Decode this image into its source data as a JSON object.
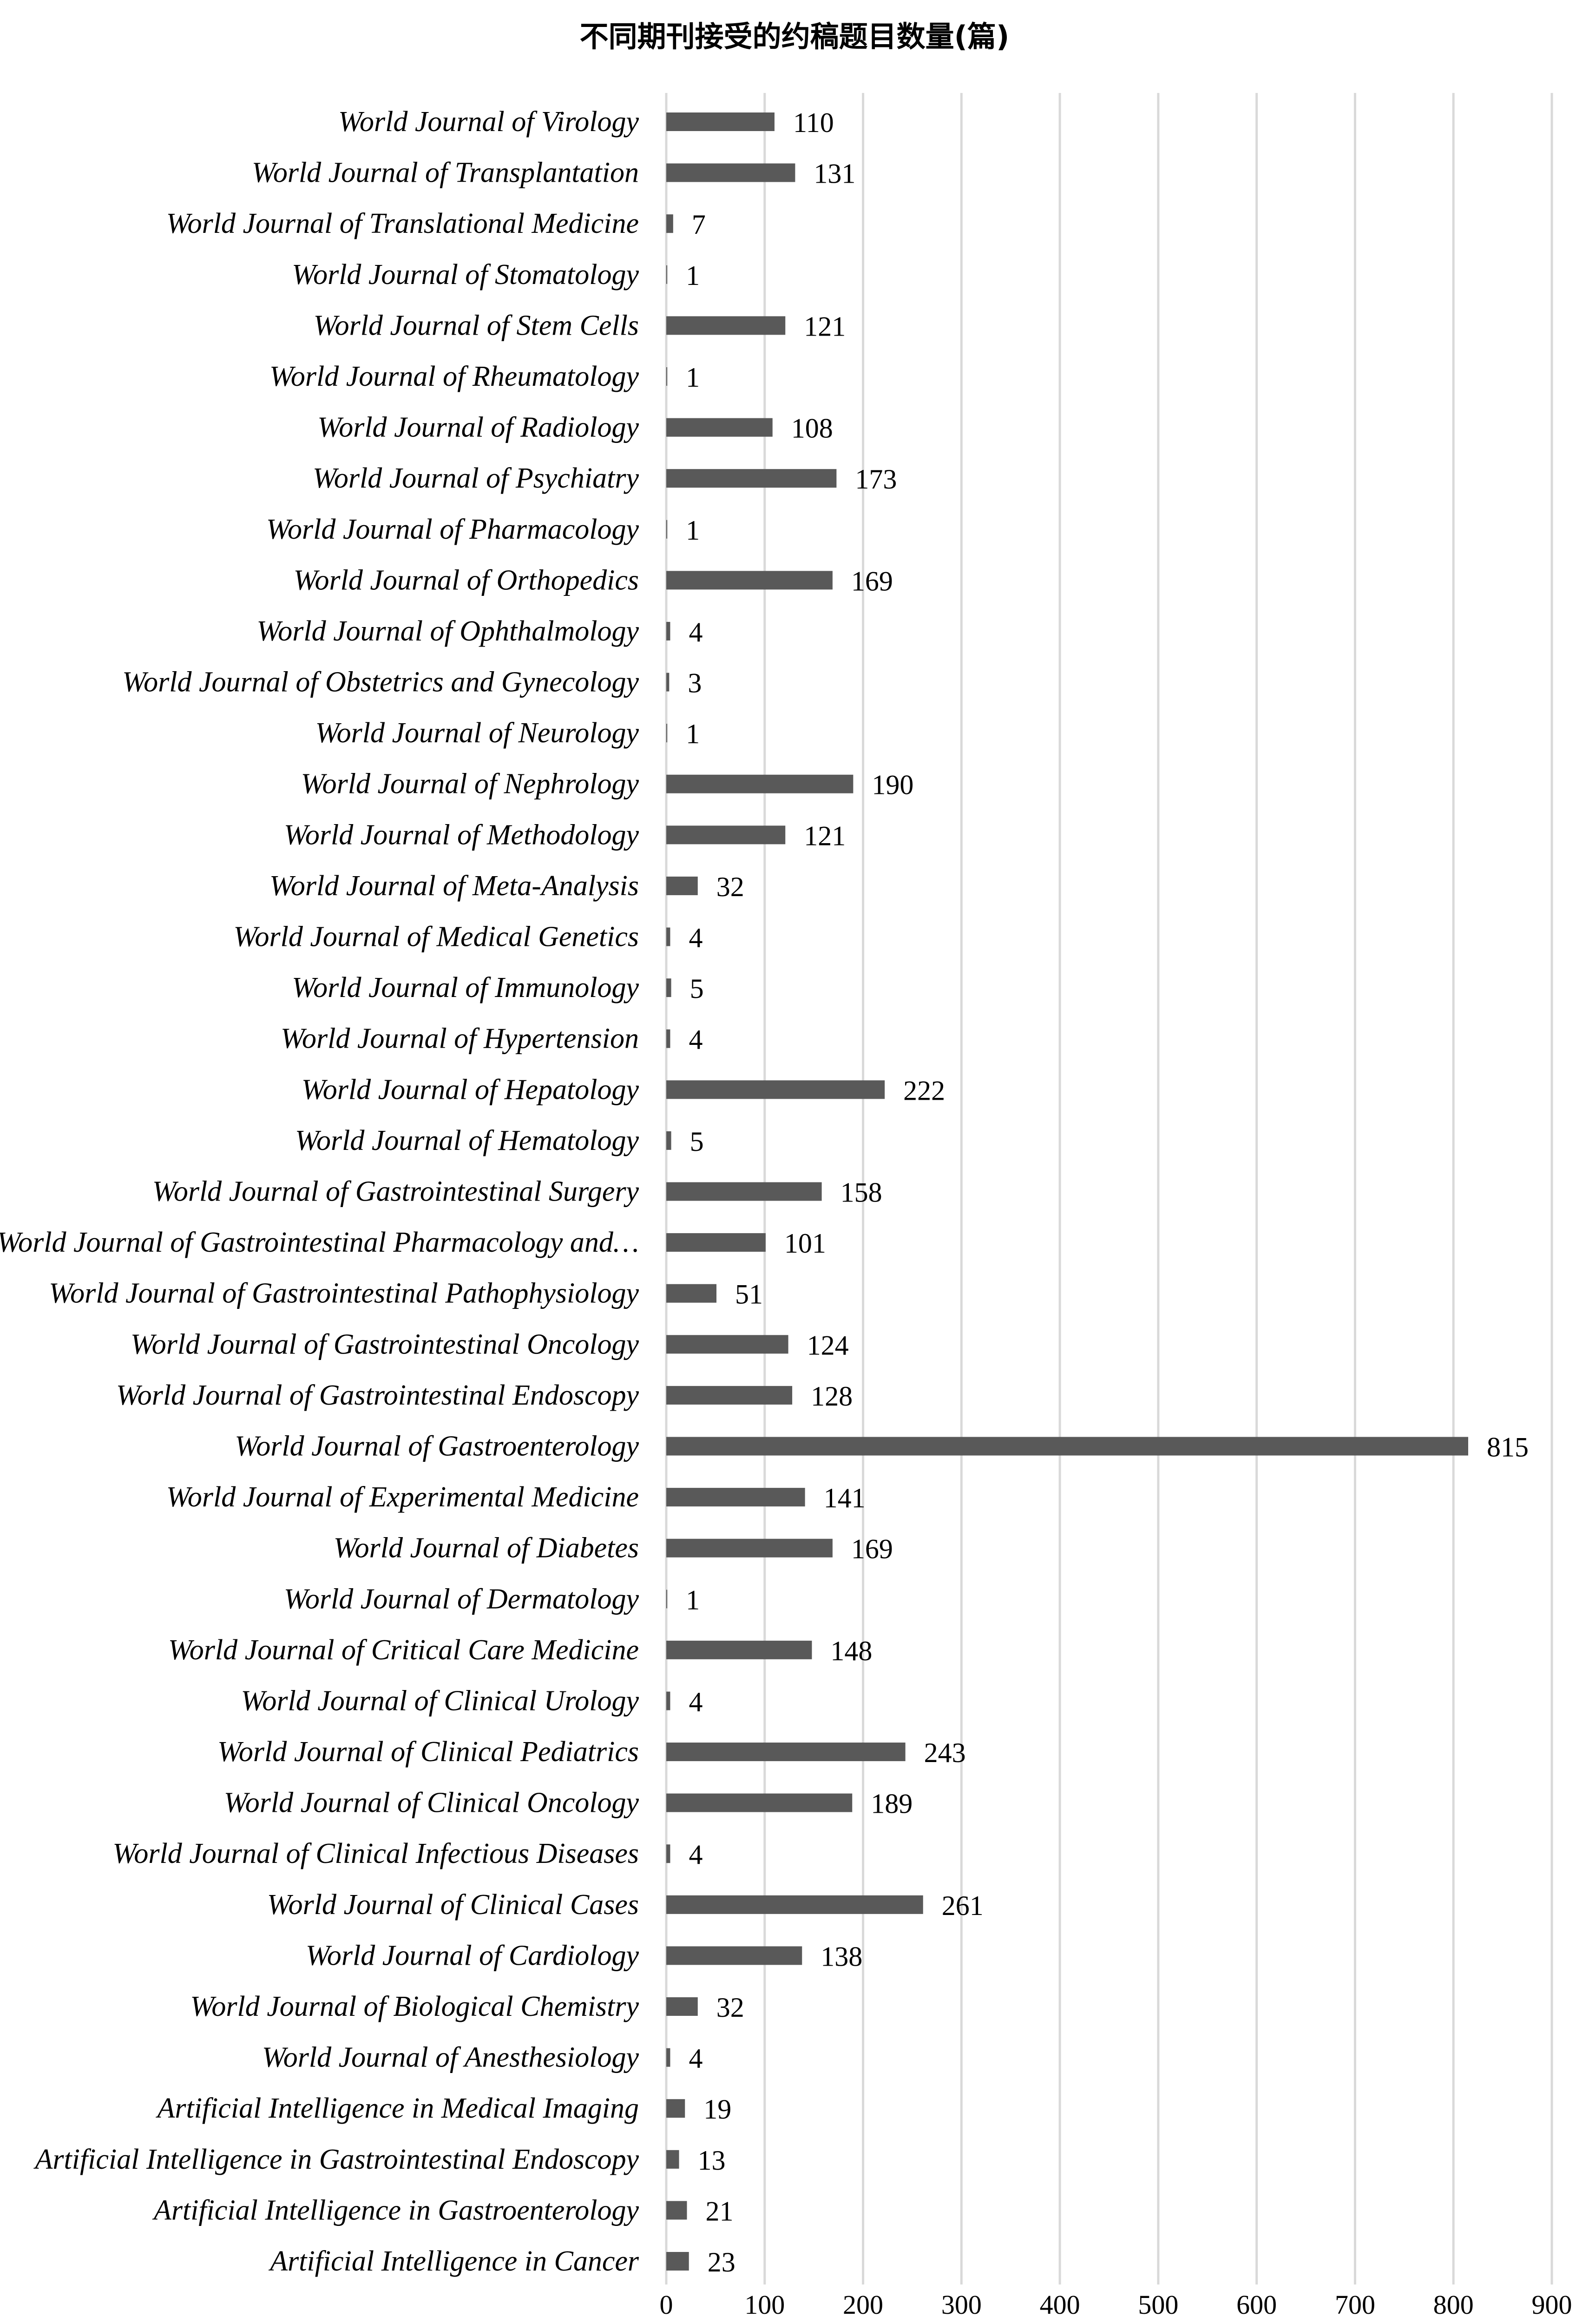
{
  "chart_data": {
    "type": "bar",
    "orientation": "horizontal",
    "title": "不同期刊接受的约稿题目数量(篇)",
    "xlabel": "",
    "ylabel": "",
    "xlim": [
      0,
      900
    ],
    "xticks": [
      0,
      100,
      200,
      300,
      400,
      500,
      600,
      700,
      800,
      900
    ],
    "grid": true,
    "bar_color": "#595959",
    "categories": [
      "World Journal of Virology",
      "World Journal of Transplantation",
      "World Journal of Translational Medicine",
      "World Journal of Stomatology",
      "World Journal of Stem Cells",
      "World Journal of Rheumatology",
      "World Journal of Radiology",
      "World Journal of Psychiatry",
      "World Journal of Pharmacology",
      "World Journal of Orthopedics",
      "World Journal of Ophthalmology",
      "World Journal of Obstetrics and Gynecology",
      "World Journal of Neurology",
      "World Journal of Nephrology",
      "World Journal of Methodology",
      "World Journal of Meta-Analysis",
      "World Journal of Medical Genetics",
      "World Journal of Immunology",
      "World Journal of Hypertension",
      "World Journal of Hepatology",
      "World Journal of Hematology",
      "World Journal of Gastrointestinal Surgery",
      "World Journal of Gastrointestinal Pharmacology and…",
      "World Journal of Gastrointestinal Pathophysiology",
      "World Journal of Gastrointestinal Oncology",
      "World Journal of Gastrointestinal Endoscopy",
      "World Journal of Gastroenterology",
      "World Journal of Experimental Medicine",
      "World Journal of Diabetes",
      "World Journal of Dermatology",
      "World Journal of Critical Care Medicine",
      "World Journal of Clinical Urology",
      "World Journal of Clinical Pediatrics",
      "World Journal of Clinical Oncology",
      "World Journal of Clinical Infectious Diseases",
      "World Journal of Clinical Cases",
      "World Journal of Cardiology",
      "World Journal of Biological Chemistry",
      "World Journal of Anesthesiology",
      "Artificial Intelligence in Medical Imaging",
      "Artificial Intelligence in Gastrointestinal Endoscopy",
      "Artificial Intelligence in Gastroenterology",
      "Artificial Intelligence in Cancer"
    ],
    "values": [
      110,
      131,
      7,
      1,
      121,
      1,
      108,
      173,
      1,
      169,
      4,
      3,
      1,
      190,
      121,
      32,
      4,
      5,
      4,
      222,
      5,
      158,
      101,
      51,
      124,
      128,
      815,
      141,
      169,
      1,
      148,
      4,
      243,
      189,
      4,
      261,
      138,
      32,
      4,
      19,
      13,
      21,
      23
    ]
  }
}
